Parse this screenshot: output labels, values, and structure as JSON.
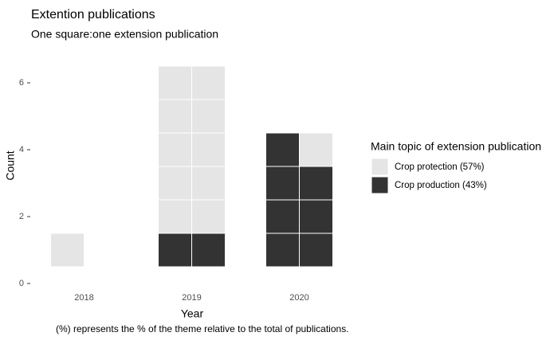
{
  "chart_data": {
    "type": "waffle",
    "title": "Extention publications",
    "subtitle": "One square:one extension publication",
    "caption": "(%) represents the % of the theme relative to the total of publications.",
    "x_label": "Year",
    "y_label": "Count",
    "legend_title": "Main topic of extension publication",
    "categories": [
      "2018",
      "2019",
      "2020"
    ],
    "series": [
      {
        "name": "Crop protection (57%)",
        "color": "#e5e5e5",
        "values": [
          1,
          10,
          1
        ]
      },
      {
        "name": "Crop production (43%)",
        "color": "#333333",
        "values": [
          0,
          2,
          7
        ]
      }
    ],
    "ylim": [
      0,
      6.5
    ],
    "yticks": [
      0,
      2,
      4,
      6
    ]
  }
}
